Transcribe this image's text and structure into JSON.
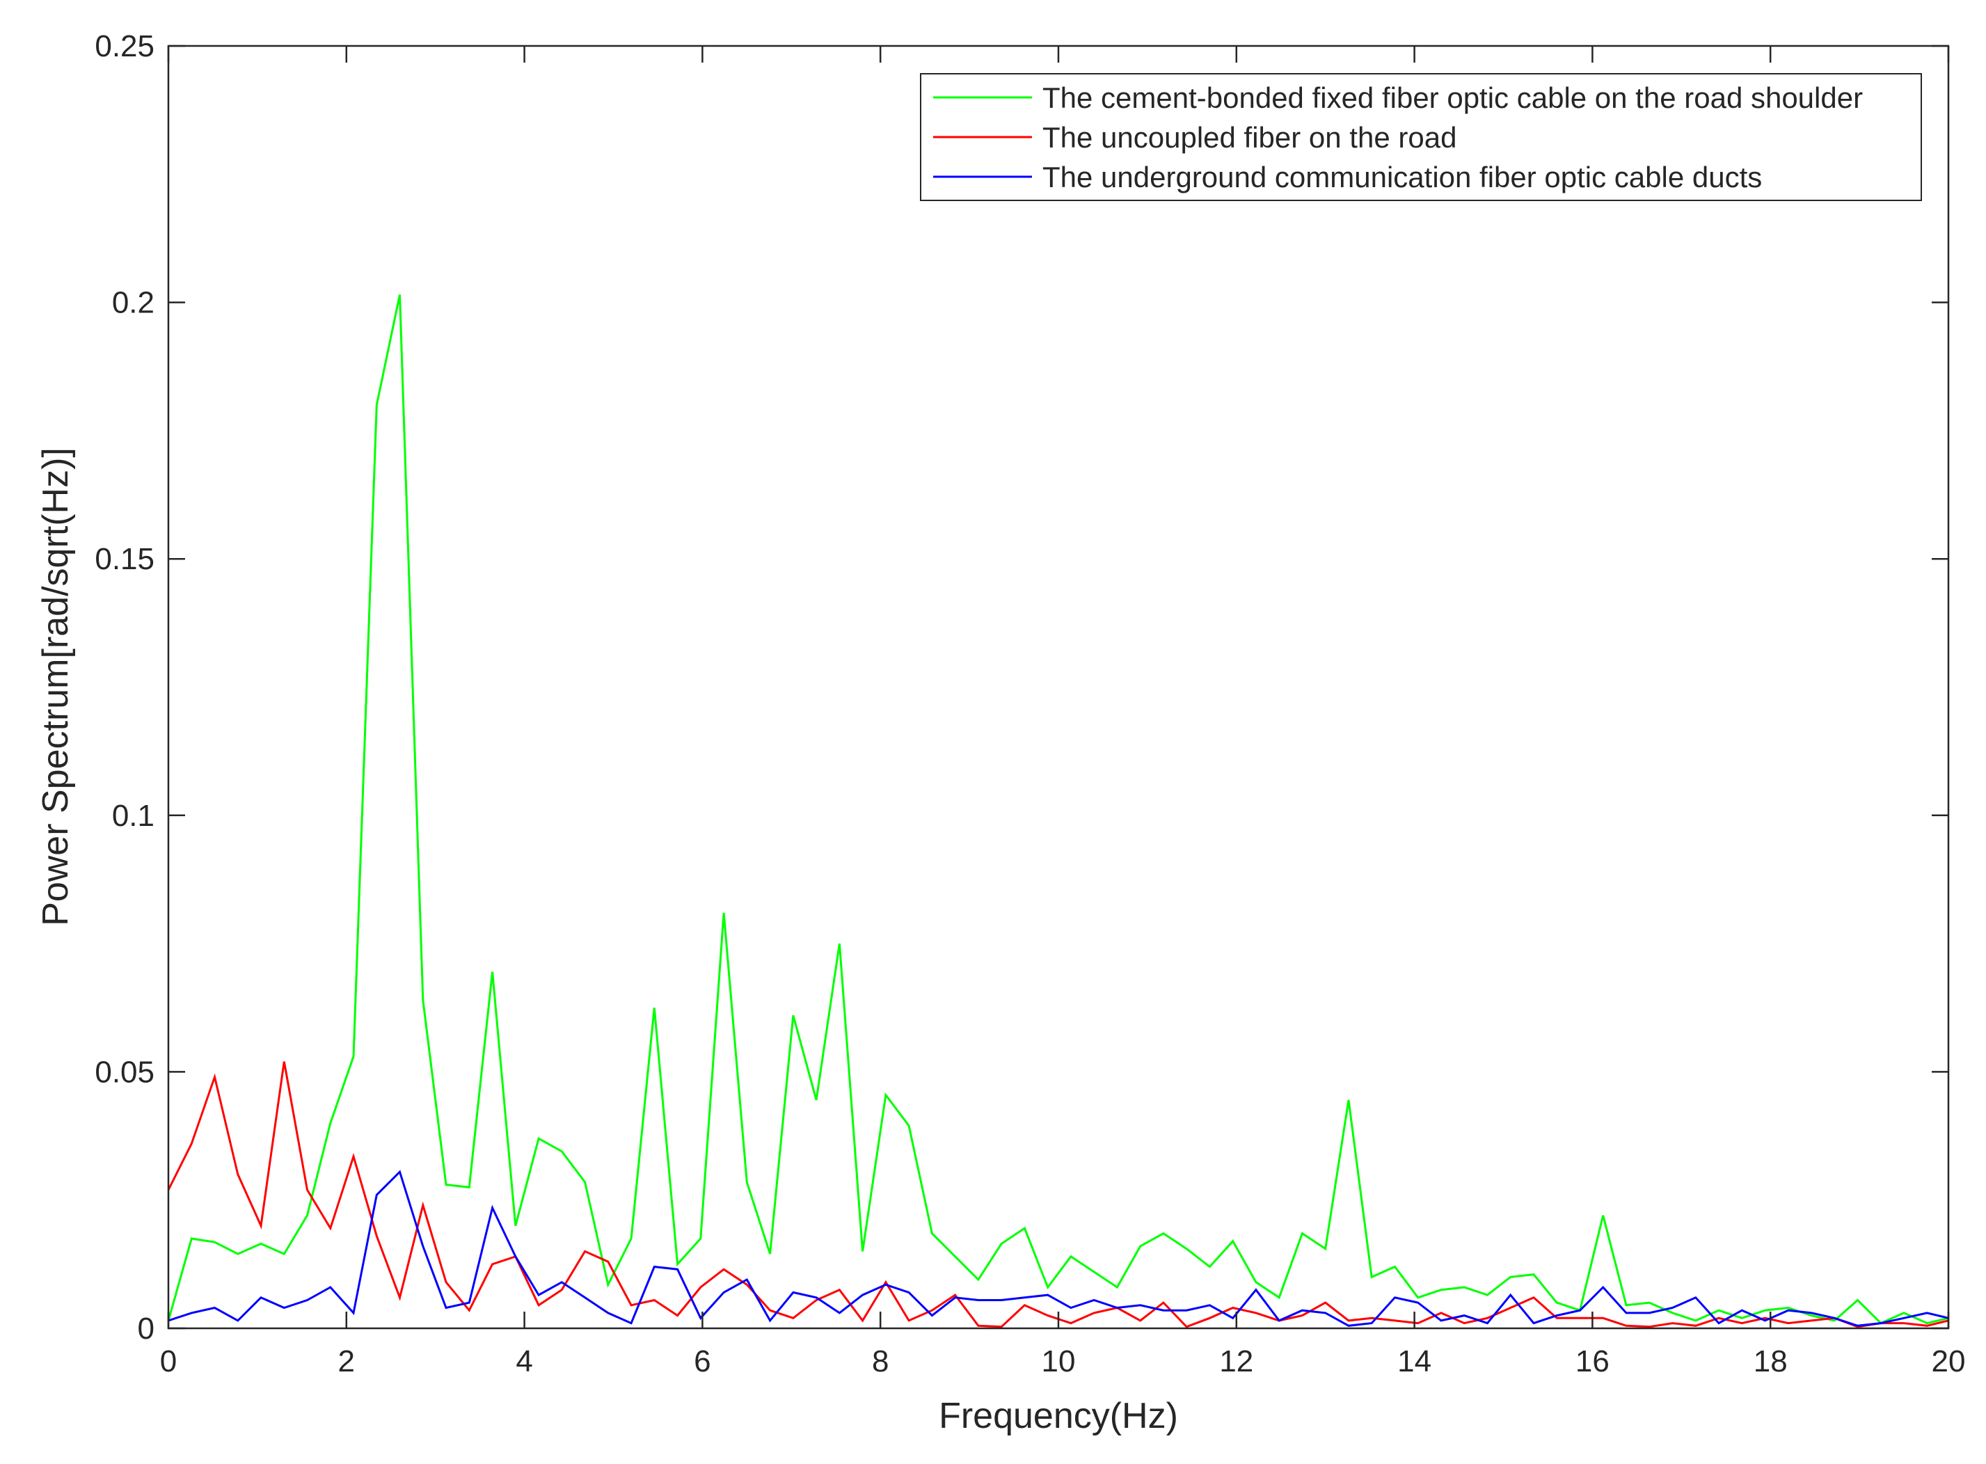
{
  "chart_data": {
    "type": "line",
    "title": "",
    "xlabel": "Frequency(Hz)",
    "ylabel": "Power Spectrum[rad/sqrt(Hz)]",
    "xlim": [
      0,
      20
    ],
    "ylim": [
      0,
      0.25
    ],
    "grid": false,
    "box": true,
    "legend_position": "top-right",
    "x_ticks": [
      0,
      2,
      4,
      6,
      8,
      10,
      12,
      14,
      16,
      18,
      20
    ],
    "x_tick_labels": [
      "0",
      "2",
      "4",
      "6",
      "8",
      "10",
      "12",
      "14",
      "16",
      "18",
      "20"
    ],
    "y_ticks": [
      0,
      0.05,
      0.1,
      0.15,
      0.2,
      0.25
    ],
    "y_tick_labels": [
      "0",
      "0.05",
      "0.1",
      "0.15",
      "0.2",
      "0.25"
    ],
    "x": [
      0,
      0.26,
      0.52,
      0.78,
      1.04,
      1.3,
      1.56,
      1.82,
      2.08,
      2.34,
      2.6,
      2.86,
      3.12,
      3.38,
      3.64,
      3.9,
      4.16,
      4.42,
      4.68,
      4.94,
      5.2,
      5.46,
      5.72,
      5.98,
      6.24,
      6.5,
      6.76,
      7.02,
      7.28,
      7.54,
      7.8,
      8.06,
      8.32,
      8.58,
      8.84,
      9.1,
      9.36,
      9.62,
      9.88,
      10.14,
      10.4,
      10.66,
      10.92,
      11.18,
      11.44,
      11.7,
      11.96,
      12.22,
      12.48,
      12.74,
      13.0,
      13.26,
      13.52,
      13.78,
      14.04,
      14.3,
      14.56,
      14.82,
      15.08,
      15.34,
      15.6,
      15.86,
      16.12,
      16.38,
      16.64,
      16.9,
      17.16,
      17.42,
      17.68,
      17.94,
      18.2,
      18.46,
      18.72,
      18.98,
      19.24,
      19.5,
      19.76,
      20.0
    ],
    "series": [
      {
        "name": "The cement-bonded fixed fiber optic cable on the road shoulder",
        "color": "#00ff00",
        "values": [
          0.0015,
          0.0175,
          0.0168,
          0.0145,
          0.0165,
          0.0145,
          0.022,
          0.04,
          0.053,
          0.18,
          0.2015,
          0.064,
          0.028,
          0.0275,
          0.0695,
          0.02,
          0.037,
          0.0345,
          0.0285,
          0.0085,
          0.0175,
          0.0625,
          0.0125,
          0.0175,
          0.081,
          0.0285,
          0.0145,
          0.061,
          0.0445,
          0.075,
          0.015,
          0.0455,
          0.0395,
          0.0185,
          0.014,
          0.0095,
          0.0165,
          0.0195,
          0.008,
          0.014,
          0.011,
          0.008,
          0.016,
          0.0185,
          0.0155,
          0.012,
          0.017,
          0.009,
          0.006,
          0.0185,
          0.0155,
          0.0445,
          0.01,
          0.012,
          0.006,
          0.0075,
          0.008,
          0.0065,
          0.01,
          0.0105,
          0.005,
          0.0035,
          0.022,
          0.0045,
          0.005,
          0.003,
          0.0015,
          0.0035,
          0.002,
          0.0035,
          0.004,
          0.0025,
          0.0015,
          0.0055,
          0.001,
          0.003,
          0.001,
          0.002
        ]
      },
      {
        "name": "The uncoupled fiber on the road",
        "color": "#ff0000",
        "values": [
          0.027,
          0.036,
          0.049,
          0.03,
          0.02,
          0.052,
          0.027,
          0.0195,
          0.0335,
          0.018,
          0.006,
          0.024,
          0.009,
          0.0035,
          0.0125,
          0.014,
          0.0045,
          0.0075,
          0.015,
          0.013,
          0.0045,
          0.0055,
          0.0025,
          0.008,
          0.0115,
          0.0085,
          0.0035,
          0.002,
          0.0055,
          0.0075,
          0.0015,
          0.009,
          0.0015,
          0.0035,
          0.0065,
          0.0005,
          0.0003,
          0.0045,
          0.0025,
          0.001,
          0.003,
          0.004,
          0.0015,
          0.005,
          0.0003,
          0.002,
          0.004,
          0.003,
          0.0015,
          0.0025,
          0.005,
          0.0015,
          0.002,
          0.0015,
          0.001,
          0.003,
          0.001,
          0.002,
          0.004,
          0.006,
          0.002,
          0.002,
          0.002,
          0.0005,
          0.0003,
          0.001,
          0.0005,
          0.002,
          0.001,
          0.002,
          0.001,
          0.0015,
          0.002,
          0.0003,
          0.001,
          0.001,
          0.0005,
          0.0015
        ]
      },
      {
        "name": "The underground communication fiber optic cable ducts",
        "color": "#0000ff",
        "values": [
          0.0015,
          0.003,
          0.004,
          0.0015,
          0.006,
          0.004,
          0.0055,
          0.008,
          0.003,
          0.026,
          0.0305,
          0.016,
          0.004,
          0.005,
          0.0235,
          0.014,
          0.0065,
          0.009,
          0.006,
          0.003,
          0.001,
          0.012,
          0.0115,
          0.002,
          0.007,
          0.0095,
          0.0015,
          0.007,
          0.006,
          0.003,
          0.0065,
          0.0085,
          0.007,
          0.0025,
          0.006,
          0.0055,
          0.0055,
          0.006,
          0.0065,
          0.004,
          0.0055,
          0.004,
          0.0045,
          0.0035,
          0.0035,
          0.0045,
          0.002,
          0.0075,
          0.0015,
          0.0035,
          0.003,
          0.0005,
          0.001,
          0.006,
          0.005,
          0.0015,
          0.0025,
          0.001,
          0.0065,
          0.001,
          0.0025,
          0.0035,
          0.008,
          0.003,
          0.003,
          0.004,
          0.006,
          0.001,
          0.0035,
          0.0015,
          0.0035,
          0.003,
          0.002,
          0.0005,
          0.001,
          0.002,
          0.003,
          0.002
        ]
      }
    ]
  }
}
